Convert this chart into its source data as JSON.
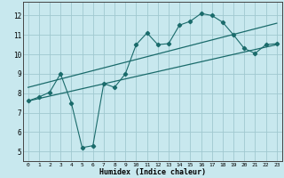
{
  "xlabel": "Humidex (Indice chaleur)",
  "xlim": [
    -0.5,
    23.5
  ],
  "ylim": [
    4.5,
    12.7
  ],
  "xticks": [
    0,
    1,
    2,
    3,
    4,
    5,
    6,
    7,
    8,
    9,
    10,
    11,
    12,
    13,
    14,
    15,
    16,
    17,
    18,
    19,
    20,
    21,
    22,
    23
  ],
  "yticks": [
    5,
    6,
    7,
    8,
    9,
    10,
    11,
    12
  ],
  "background_color": "#c8e8ee",
  "line_color": "#1a6b6b",
  "grid_color": "#a0c8d0",
  "jagged_x": [
    0,
    1,
    2,
    3,
    4,
    5,
    6,
    7,
    8,
    9,
    10,
    11,
    12,
    13,
    14,
    15,
    16,
    17,
    18,
    19,
    20,
    21,
    22,
    23
  ],
  "jagged_y": [
    7.6,
    7.8,
    8.05,
    9.0,
    7.5,
    5.2,
    5.3,
    8.5,
    8.3,
    9.0,
    10.5,
    11.1,
    10.5,
    10.55,
    11.5,
    11.7,
    12.1,
    12.0,
    11.65,
    11.0,
    10.3,
    10.05,
    10.5,
    10.55
  ],
  "trend1_x": [
    0,
    23
  ],
  "trend1_y": [
    7.6,
    10.5
  ],
  "trend2_x": [
    0,
    23
  ],
  "trend2_y": [
    8.3,
    11.6
  ]
}
